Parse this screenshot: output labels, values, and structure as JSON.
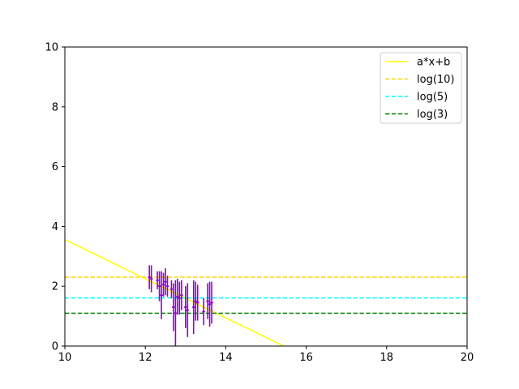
{
  "chart_data": {
    "type": "scatter",
    "xlim": [
      10,
      20
    ],
    "ylim": [
      0,
      10
    ],
    "x_ticks": [
      "10",
      "12",
      "14",
      "16",
      "18",
      "20"
    ],
    "y_ticks": [
      "0",
      "2",
      "4",
      "6",
      "8",
      "10"
    ],
    "grid": false,
    "legend_position": "top-right",
    "series": [
      {
        "name": "a*x+b",
        "kind": "line",
        "style": "solid",
        "color": "#ffff00",
        "x": [
          10,
          15.44
        ],
        "y": [
          3.56,
          0
        ]
      },
      {
        "name": "log(10)",
        "kind": "hline",
        "style": "dashed",
        "color": "#ffd700",
        "y": 2.302585
      },
      {
        "name": "log(5)",
        "kind": "hline",
        "style": "dashed",
        "color": "#00ffff",
        "y": 1.609438
      },
      {
        "name": "log(3)",
        "kind": "hline",
        "style": "dashed",
        "color": "#008000",
        "y": 1.098612
      }
    ],
    "errorbar_points": {
      "color": "#9400d3",
      "points": [
        {
          "x": 12.1,
          "y": 2.3,
          "yerr": 0.4
        },
        {
          "x": 12.15,
          "y": 2.25,
          "yerr": 0.45
        },
        {
          "x": 12.3,
          "y": 2.2,
          "yerr": 0.3
        },
        {
          "x": 12.35,
          "y": 2.0,
          "yerr": 0.5
        },
        {
          "x": 12.4,
          "y": 1.7,
          "yerr": 0.8
        },
        {
          "x": 12.45,
          "y": 2.05,
          "yerr": 0.4
        },
        {
          "x": 12.5,
          "y": 2.15,
          "yerr": 0.45
        },
        {
          "x": 12.55,
          "y": 2.0,
          "yerr": 0.35
        },
        {
          "x": 12.65,
          "y": 1.9,
          "yerr": 0.3
        },
        {
          "x": 12.7,
          "y": 1.3,
          "yerr": 0.8
        },
        {
          "x": 12.75,
          "y": 1.1,
          "yerr": 1.1
        },
        {
          "x": 12.8,
          "y": 1.65,
          "yerr": 0.6
        },
        {
          "x": 12.85,
          "y": 1.6,
          "yerr": 0.55
        },
        {
          "x": 12.9,
          "y": 1.7,
          "yerr": 0.5
        },
        {
          "x": 13.0,
          "y": 1.3,
          "yerr": 0.7
        },
        {
          "x": 13.05,
          "y": 1.2,
          "yerr": 0.9
        },
        {
          "x": 13.2,
          "y": 1.3,
          "yerr": 0.9
        },
        {
          "x": 13.25,
          "y": 1.5,
          "yerr": 0.65
        },
        {
          "x": 13.3,
          "y": 1.45,
          "yerr": 0.6
        },
        {
          "x": 13.45,
          "y": 1.15,
          "yerr": 0.45
        },
        {
          "x": 13.55,
          "y": 1.5,
          "yerr": 0.6
        },
        {
          "x": 13.6,
          "y": 1.4,
          "yerr": 0.75
        },
        {
          "x": 13.65,
          "y": 1.45,
          "yerr": 0.7
        }
      ]
    }
  }
}
